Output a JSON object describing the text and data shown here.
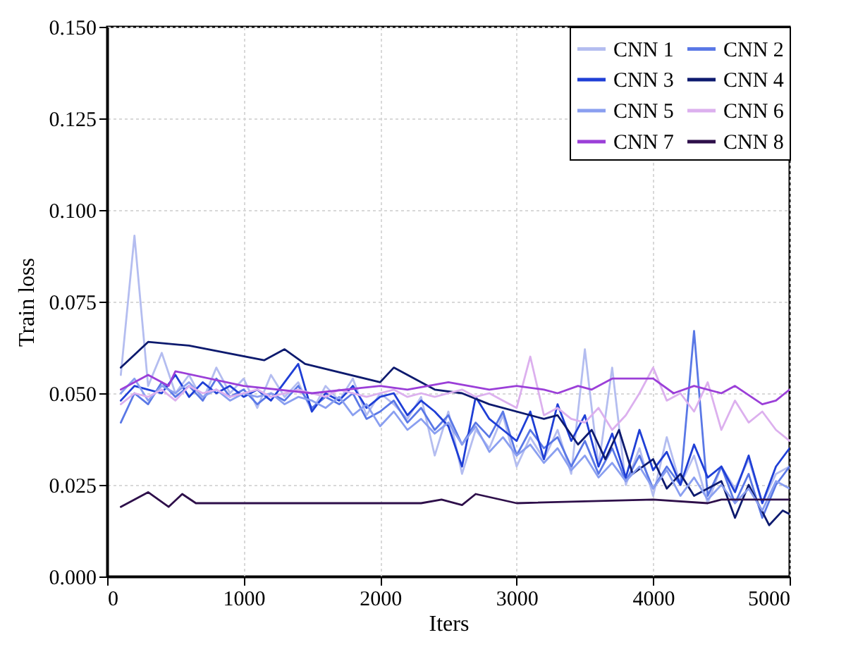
{
  "chart_data": {
    "type": "line",
    "xlabel": "Iters",
    "ylabel": "Train loss",
    "xlim": [
      0,
      5000
    ],
    "ylim": [
      0,
      0.15
    ],
    "xticks": [
      0,
      1000,
      2000,
      3000,
      4000,
      5000
    ],
    "yticks": [
      {
        "value": 0,
        "label": "0.000"
      },
      {
        "value": 0.025,
        "label": "0.025"
      },
      {
        "value": 0.05,
        "label": "0.050"
      },
      {
        "value": 0.075,
        "label": "0.075"
      },
      {
        "value": 0.1,
        "label": "0.100"
      },
      {
        "value": 0.125,
        "label": "0.125"
      },
      {
        "value": 0.15,
        "label": "0.150"
      }
    ],
    "grid": true,
    "legend": "top right",
    "line_style": "solid",
    "x": [
      100,
      200,
      300,
      400,
      500,
      600,
      700,
      800,
      900,
      1000,
      1100,
      1200,
      1300,
      1400,
      1500,
      1600,
      1700,
      1800,
      1900,
      2000,
      2100,
      2200,
      2300,
      2400,
      2500,
      2600,
      2700,
      2800,
      2900,
      3000,
      3100,
      3200,
      3300,
      3400,
      3500,
      3600,
      3700,
      3800,
      3900,
      4000,
      4100,
      4200,
      4300,
      4400,
      4500,
      4600,
      4700,
      4800,
      4900,
      5000
    ],
    "series": [
      {
        "name": "CNN 1",
        "color": "#b4bdf0",
        "values": [
          0.055,
          0.093,
          0.052,
          0.061,
          0.05,
          0.055,
          0.048,
          0.057,
          0.05,
          0.054,
          0.046,
          0.055,
          0.049,
          0.053,
          0.045,
          0.052,
          0.048,
          0.054,
          0.044,
          0.05,
          0.047,
          0.043,
          0.049,
          0.033,
          0.045,
          0.028,
          0.04,
          0.035,
          0.044,
          0.03,
          0.038,
          0.032,
          0.04,
          0.028,
          0.062,
          0.03,
          0.057,
          0.025,
          0.035,
          0.022,
          0.038,
          0.025,
          0.033,
          0.02,
          0.03,
          0.024,
          0.032,
          0.02,
          0.028,
          0.03
        ]
      },
      {
        "name": "CNN 2",
        "color": "#5a78e6",
        "values": [
          0.042,
          0.05,
          0.047,
          0.053,
          0.049,
          0.052,
          0.048,
          0.054,
          0.049,
          0.051,
          0.047,
          0.05,
          0.048,
          0.052,
          0.046,
          0.049,
          0.047,
          0.05,
          0.043,
          0.045,
          0.048,
          0.042,
          0.046,
          0.04,
          0.044,
          0.036,
          0.042,
          0.038,
          0.045,
          0.033,
          0.04,
          0.035,
          0.038,
          0.03,
          0.037,
          0.028,
          0.035,
          0.026,
          0.033,
          0.024,
          0.03,
          0.025,
          0.067,
          0.022,
          0.03,
          0.02,
          0.028,
          0.016,
          0.025,
          0.03
        ]
      },
      {
        "name": "CNN 3",
        "color": "#1f3fd6",
        "values": [
          0.048,
          0.052,
          0.051,
          0.05,
          0.055,
          0.049,
          0.053,
          0.05,
          0.052,
          0.049,
          0.051,
          0.048,
          0.053,
          0.058,
          0.045,
          0.05,
          0.048,
          0.052,
          0.046,
          0.049,
          0.05,
          0.044,
          0.048,
          0.045,
          0.041,
          0.03,
          0.049,
          0.043,
          0.04,
          0.037,
          0.045,
          0.032,
          0.047,
          0.037,
          0.044,
          0.03,
          0.039,
          0.027,
          0.04,
          0.029,
          0.034,
          0.025,
          0.036,
          0.027,
          0.03,
          0.023,
          0.033,
          0.02,
          0.03,
          0.035
        ]
      },
      {
        "name": "CNN 4",
        "color": "#0d1a6e",
        "x": [
          100,
          300,
          600,
          1150,
          1300,
          1450,
          2000,
          2100,
          2400,
          2600,
          2800,
          3200,
          3300,
          3450,
          3550,
          3650,
          3750,
          3850,
          4000,
          4100,
          4200,
          4300,
          4500,
          4600,
          4700,
          4850,
          4950,
          5000
        ],
        "values": [
          0.057,
          0.064,
          0.063,
          0.059,
          0.062,
          0.058,
          0.053,
          0.057,
          0.051,
          0.05,
          0.047,
          0.043,
          0.044,
          0.036,
          0.04,
          0.032,
          0.04,
          0.028,
          0.032,
          0.024,
          0.028,
          0.022,
          0.026,
          0.016,
          0.025,
          0.014,
          0.018,
          0.017
        ]
      },
      {
        "name": "CNN 5",
        "color": "#8a9ff0",
        "values": [
          0.05,
          0.054,
          0.048,
          0.052,
          0.05,
          0.053,
          0.049,
          0.051,
          0.048,
          0.05,
          0.049,
          0.05,
          0.047,
          0.049,
          0.048,
          0.046,
          0.049,
          0.044,
          0.047,
          0.041,
          0.045,
          0.04,
          0.043,
          0.039,
          0.042,
          0.036,
          0.041,
          0.034,
          0.038,
          0.033,
          0.036,
          0.031,
          0.035,
          0.029,
          0.033,
          0.027,
          0.031,
          0.026,
          0.03,
          0.024,
          0.029,
          0.022,
          0.027,
          0.021,
          0.025,
          0.02,
          0.024,
          0.018,
          0.026,
          0.024
        ]
      },
      {
        "name": "CNN 6",
        "color": "#dcb0ee",
        "values": [
          0.047,
          0.05,
          0.049,
          0.051,
          0.048,
          0.052,
          0.05,
          0.051,
          0.049,
          0.05,
          0.051,
          0.049,
          0.05,
          0.051,
          0.05,
          0.049,
          0.051,
          0.05,
          0.049,
          0.05,
          0.051,
          0.049,
          0.05,
          0.049,
          0.05,
          0.051,
          0.049,
          0.05,
          0.048,
          0.046,
          0.06,
          0.044,
          0.046,
          0.043,
          0.042,
          0.046,
          0.04,
          0.044,
          0.05,
          0.057,
          0.048,
          0.05,
          0.045,
          0.053,
          0.04,
          0.048,
          0.042,
          0.045,
          0.04,
          0.037
        ]
      },
      {
        "name": "CNN 7",
        "color": "#9b3fd8",
        "x": [
          100,
          300,
          450,
          500,
          1000,
          1500,
          2000,
          2200,
          2500,
          2800,
          3000,
          3200,
          3300,
          3450,
          3550,
          3700,
          4000,
          4150,
          4300,
          4500,
          4600,
          4800,
          4900,
          5000
        ],
        "values": [
          0.051,
          0.055,
          0.052,
          0.056,
          0.052,
          0.05,
          0.052,
          0.051,
          0.053,
          0.051,
          0.052,
          0.051,
          0.05,
          0.052,
          0.051,
          0.054,
          0.054,
          0.05,
          0.052,
          0.05,
          0.052,
          0.047,
          0.048,
          0.051
        ]
      },
      {
        "name": "CNN 8",
        "color": "#2e0f4a",
        "x": [
          100,
          300,
          450,
          550,
          650,
          2300,
          2450,
          2600,
          2700,
          3000,
          4000,
          4400,
          4500,
          5000
        ],
        "values": [
          0.019,
          0.023,
          0.019,
          0.0225,
          0.02,
          0.02,
          0.021,
          0.0195,
          0.0225,
          0.02,
          0.021,
          0.02,
          0.021,
          0.021
        ]
      }
    ]
  }
}
